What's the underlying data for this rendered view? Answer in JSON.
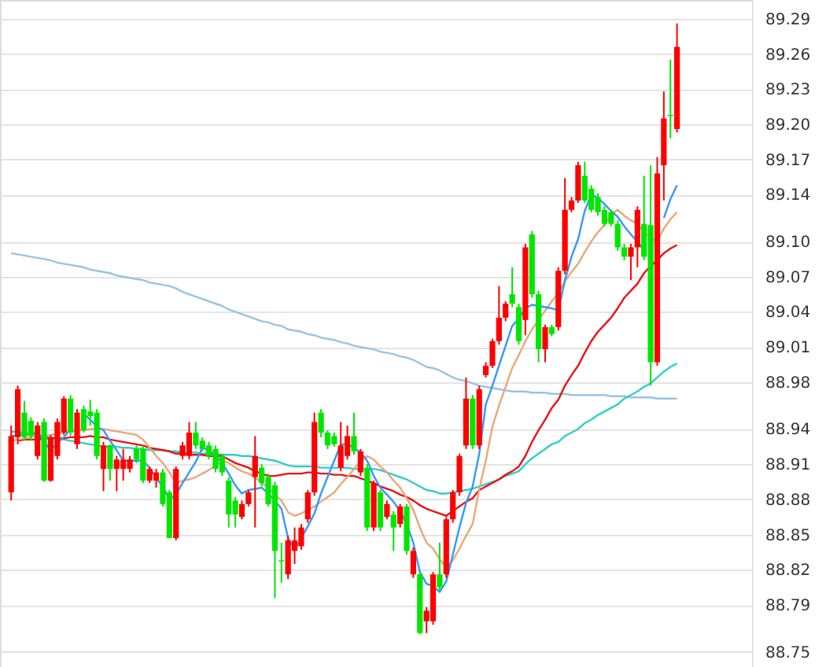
{
  "chart_data": {
    "type": "candlestick",
    "categories": [
      null,
      null,
      null,
      null,
      null,
      null,
      null,
      null,
      null,
      null,
      null,
      null,
      null,
      null,
      null,
      null,
      null,
      null,
      null,
      null,
      null,
      null,
      null,
      null,
      null,
      null,
      null,
      null,
      null,
      null,
      null,
      null,
      null,
      null,
      null,
      null,
      null,
      null,
      null,
      null,
      null,
      null,
      null,
      null,
      null,
      null,
      null,
      null,
      null,
      null,
      null,
      null,
      null,
      null,
      null,
      null,
      null,
      null,
      null,
      null,
      null,
      null,
      null,
      null,
      null,
      null,
      null,
      null,
      null,
      null,
      null,
      null,
      null,
      null,
      null,
      null,
      null,
      null,
      null,
      null,
      null,
      null,
      null,
      null,
      null,
      null,
      null,
      null,
      null,
      null,
      null,
      null,
      null,
      null,
      null,
      null,
      null,
      null,
      null,
      null,
      null,
      null
    ],
    "ohlc": [
      [
        88.886,
        88.943,
        88.879,
        88.934
      ],
      [
        88.933,
        88.977,
        88.927,
        88.974
      ],
      [
        88.954,
        88.964,
        88.93,
        88.933
      ],
      [
        88.947,
        88.95,
        88.93,
        88.934
      ],
      [
        88.917,
        88.946,
        88.914,
        88.943
      ],
      [
        88.946,
        88.949,
        88.895,
        88.896
      ],
      [
        88.896,
        88.935,
        88.895,
        88.933
      ],
      [
        88.917,
        88.949,
        88.914,
        88.946
      ],
      [
        88.937,
        88.968,
        88.935,
        88.966
      ],
      [
        88.966,
        88.969,
        88.934,
        88.937
      ],
      [
        88.927,
        88.957,
        88.923,
        88.954
      ],
      [
        88.957,
        88.96,
        88.937,
        88.939
      ],
      [
        88.955,
        88.965,
        88.943,
        88.951
      ],
      [
        88.954,
        88.957,
        88.914,
        88.917
      ],
      [
        88.906,
        88.929,
        88.887,
        88.926
      ],
      [
        88.926,
        88.927,
        88.896,
        88.906
      ],
      [
        88.906,
        88.917,
        88.887,
        88.914
      ],
      [
        88.906,
        88.923,
        88.896,
        88.914
      ],
      [
        88.906,
        88.917,
        88.903,
        88.914
      ],
      [
        88.923,
        88.926,
        88.911,
        88.914
      ],
      [
        88.923,
        88.926,
        88.894,
        88.896
      ],
      [
        88.896,
        88.908,
        88.894,
        88.906
      ],
      [
        88.896,
        88.906,
        88.89,
        88.903
      ],
      [
        88.903,
        88.906,
        88.874,
        88.876
      ],
      [
        88.886,
        88.888,
        88.847,
        88.847
      ],
      [
        88.847,
        88.908,
        88.845,
        88.906
      ],
      [
        88.917,
        88.929,
        88.914,
        88.926
      ],
      [
        88.917,
        88.946,
        88.914,
        88.937
      ],
      [
        88.937,
        88.946,
        88.923,
        88.926
      ],
      [
        88.93,
        88.933,
        88.921,
        88.923
      ],
      [
        88.926,
        88.929,
        88.914,
        88.917
      ],
      [
        88.923,
        88.926,
        88.903,
        88.906
      ],
      [
        88.917,
        88.919,
        88.9,
        88.903
      ],
      [
        88.896,
        88.899,
        88.856,
        88.867
      ],
      [
        88.879,
        88.882,
        88.856,
        88.867
      ],
      [
        88.865,
        88.879,
        88.863,
        88.876
      ],
      [
        88.876,
        88.888,
        88.874,
        88.886
      ],
      [
        88.899,
        88.934,
        88.856,
        88.917
      ],
      [
        88.907,
        88.91,
        88.891,
        88.894
      ],
      [
        88.899,
        88.902,
        88.874,
        88.876
      ],
      [
        88.892,
        88.895,
        88.796,
        88.836
      ],
      [
        88.828,
        88.843,
        88.809,
        88.827
      ],
      [
        88.816,
        88.849,
        88.812,
        88.845
      ],
      [
        88.836,
        88.856,
        88.825,
        88.845
      ],
      [
        88.84,
        88.859,
        88.837,
        88.856
      ],
      [
        88.863,
        88.888,
        88.86,
        88.886
      ],
      [
        88.886,
        88.954,
        88.883,
        88.946
      ],
      [
        88.954,
        88.957,
        88.933,
        88.937
      ],
      [
        88.937,
        88.939,
        88.923,
        88.926
      ],
      [
        88.934,
        88.937,
        88.925,
        88.927
      ],
      [
        88.907,
        88.946,
        88.904,
        88.926
      ],
      [
        88.917,
        88.943,
        88.914,
        88.934
      ],
      [
        88.934,
        88.954,
        88.918,
        88.921
      ],
      [
        88.903,
        88.923,
        88.9,
        88.921
      ],
      [
        88.907,
        88.91,
        88.853,
        88.856
      ],
      [
        88.856,
        88.896,
        88.853,
        88.894
      ],
      [
        88.886,
        88.888,
        88.853,
        88.856
      ],
      [
        88.865,
        88.879,
        88.863,
        88.876
      ],
      [
        88.867,
        88.87,
        88.836,
        88.856
      ],
      [
        88.859,
        88.876,
        88.856,
        88.874
      ],
      [
        88.874,
        88.876,
        88.833,
        88.836
      ],
      [
        88.816,
        88.839,
        88.813,
        88.836
      ],
      [
        88.816,
        88.818,
        88.765,
        88.766
      ],
      [
        88.776,
        88.788,
        88.766,
        88.785
      ],
      [
        88.776,
        88.818,
        88.773,
        88.816
      ],
      [
        88.816,
        88.843,
        88.802,
        88.805
      ],
      [
        88.816,
        88.865,
        88.813,
        88.863
      ],
      [
        88.863,
        88.888,
        88.86,
        88.886
      ],
      [
        88.886,
        88.919,
        88.883,
        88.917
      ],
      [
        88.926,
        88.984,
        88.923,
        88.966
      ],
      [
        88.966,
        88.969,
        88.923,
        88.926
      ],
      [
        88.926,
        88.977,
        88.923,
        88.974
      ],
      [
        88.986,
        88.997,
        88.984,
        88.994
      ],
      [
        88.994,
        89.017,
        88.992,
        89.015
      ],
      [
        89.015,
        89.062,
        89.012,
        89.035
      ],
      [
        89.035,
        89.049,
        89.032,
        89.047
      ],
      [
        89.055,
        89.078,
        89.044,
        89.047
      ],
      [
        89.044,
        89.047,
        89.012,
        89.015
      ],
      [
        89.033,
        89.098,
        89.02,
        89.095
      ],
      [
        89.106,
        89.109,
        89.052,
        89.055
      ],
      [
        89.055,
        89.058,
        88.997,
        89.008
      ],
      [
        89.008,
        89.029,
        88.997,
        89.027
      ],
      [
        89.027,
        89.029,
        89.019,
        89.021
      ],
      [
        89.027,
        89.078,
        89.024,
        89.075
      ],
      [
        89.075,
        89.154,
        89.072,
        89.127
      ],
      [
        89.127,
        89.138,
        89.125,
        89.135
      ],
      [
        89.135,
        89.168,
        89.133,
        89.165
      ],
      [
        89.156,
        89.168,
        89.133,
        89.135
      ],
      [
        89.145,
        89.148,
        89.125,
        89.127
      ],
      [
        89.138,
        89.141,
        89.122,
        89.125
      ],
      [
        89.127,
        89.13,
        89.113,
        89.115
      ],
      [
        89.125,
        89.127,
        89.113,
        89.115
      ],
      [
        89.115,
        89.118,
        89.092,
        89.095
      ],
      [
        89.095,
        89.098,
        89.084,
        89.087
      ],
      [
        89.087,
        89.098,
        89.067,
        89.095
      ],
      [
        89.095,
        89.13,
        89.078,
        89.127
      ],
      [
        89.115,
        89.156,
        89.084,
        89.087
      ],
      [
        89.114,
        89.165,
        88.977,
        88.997
      ],
      [
        88.997,
        89.172,
        88.994,
        89.158
      ],
      [
        89.165,
        89.228,
        89.135,
        89.205
      ],
      [
        89.208,
        89.255,
        89.188,
        89.207
      ],
      [
        89.196,
        89.286,
        89.193,
        89.266
      ]
    ],
    "colors": [
      "#ff0000",
      "#ff0000",
      "#00e600",
      "#00e600",
      "#ff0000",
      "#00e600",
      "#ff0000",
      "#ff0000",
      "#ff0000",
      "#00e600",
      "#ff0000",
      "#00e600",
      "#00e600",
      "#00e600",
      "#ff0000",
      "#00e600",
      "#ff0000",
      "#ff0000",
      "#ff0000",
      "#00e600",
      "#00e600",
      "#ff0000",
      "#ff0000",
      "#00e600",
      "#00e600",
      "#ff0000",
      "#ff0000",
      "#ff0000",
      "#00e600",
      "#00e600",
      "#00e600",
      "#00e600",
      "#00e600",
      "#00e600",
      "#00e600",
      "#ff0000",
      "#ff0000",
      "#ff0000",
      "#00e600",
      "#00e600",
      "#00e600",
      "#00e600",
      "#ff0000",
      "#ff0000",
      "#ff0000",
      "#ff0000",
      "#ff0000",
      "#00e600",
      "#00e600",
      "#00e600",
      "#ff0000",
      "#ff0000",
      "#00e600",
      "#ff0000",
      "#00e600",
      "#ff0000",
      "#00e600",
      "#ff0000",
      "#00e600",
      "#ff0000",
      "#00e600",
      "#ff0000",
      "#00e600",
      "#ff0000",
      "#ff0000",
      "#00e600",
      "#ff0000",
      "#ff0000",
      "#ff0000",
      "#ff0000",
      "#00e600",
      "#ff0000",
      "#ff0000",
      "#ff0000",
      "#ff0000",
      "#ff0000",
      "#00e600",
      "#00e600",
      "#ff0000",
      "#00e600",
      "#00e600",
      "#ff0000",
      "#00e600",
      "#ff0000",
      "#ff0000",
      "#ff0000",
      "#ff0000",
      "#00e600",
      "#00e600",
      "#00e600",
      "#00e600",
      "#00e600",
      "#00e600",
      "#00e600",
      "#ff0000",
      "#ff0000",
      "#00e600",
      "#00e600",
      "#ff0000",
      "#ff0000",
      "#00e600",
      "#ff0000"
    ],
    "series": [
      {
        "type": "line",
        "color": "#99c4e0",
        "values": [
          89.09,
          89.089,
          89.088,
          89.087,
          89.086,
          89.085,
          89.084,
          89.082,
          89.081,
          89.08,
          89.079,
          89.078,
          89.076,
          89.075,
          89.074,
          89.073,
          89.071,
          89.07,
          89.069,
          89.068,
          89.067,
          89.065,
          89.064,
          89.063,
          89.062,
          89.06,
          89.057,
          89.055,
          89.053,
          89.051,
          89.049,
          89.047,
          89.045,
          89.042,
          89.04,
          89.038,
          89.036,
          89.034,
          89.032,
          89.031,
          89.029,
          89.028,
          89.025,
          89.024,
          89.023,
          89.021,
          89.02,
          89.018,
          89.017,
          89.016,
          89.014,
          89.013,
          89.011,
          89.01,
          89.009,
          89.008,
          89.006,
          89.005,
          89.004,
          89.002,
          89.001,
          88.999,
          88.996,
          88.993,
          88.992,
          88.99,
          88.987,
          88.984,
          88.982,
          88.981,
          88.979,
          88.977,
          88.976,
          88.975,
          88.974,
          88.973,
          88.972,
          88.972,
          88.972,
          88.971,
          88.971,
          88.971,
          88.97,
          88.97,
          88.97,
          88.969,
          88.969,
          88.969,
          88.969,
          88.969,
          88.969,
          88.968,
          88.968,
          88.968,
          88.967,
          88.967,
          88.967,
          88.967,
          88.966,
          88.966,
          88.966,
          88.966
        ]
      },
      {
        "type": "line",
        "color": "#33cccc",
        "values": [
          88.938,
          88.937,
          88.937,
          88.936,
          88.935,
          88.934,
          88.933,
          88.932,
          88.931,
          88.93,
          88.929,
          88.928,
          88.927,
          88.926,
          88.925,
          88.925,
          88.925,
          88.924,
          88.924,
          88.923,
          88.923,
          88.922,
          88.922,
          88.922,
          88.921,
          88.921,
          88.92,
          88.92,
          88.92,
          88.919,
          88.919,
          88.919,
          88.918,
          88.918,
          88.918,
          88.917,
          88.917,
          88.916,
          88.915,
          88.914,
          88.913,
          88.911,
          88.909,
          88.908,
          88.908,
          88.908,
          88.908,
          88.907,
          88.907,
          88.907,
          88.907,
          88.907,
          88.906,
          88.906,
          88.906,
          88.906,
          88.905,
          88.903,
          88.901,
          88.899,
          88.897,
          88.894,
          88.891,
          88.888,
          88.887,
          88.885,
          88.885,
          88.886,
          88.887,
          88.888,
          88.889,
          88.891,
          88.893,
          88.895,
          88.897,
          88.9,
          88.902,
          88.904,
          88.91,
          88.915,
          88.919,
          88.923,
          88.927,
          88.929,
          88.934,
          88.937,
          88.94,
          88.945,
          88.948,
          88.952,
          88.955,
          88.958,
          88.961,
          88.966,
          88.969,
          88.972,
          88.976,
          88.979,
          88.984,
          88.989,
          88.993,
          88.996
        ]
      },
      {
        "type": "line",
        "color": "#ee1111",
        "values": [
          null,
          88.93,
          88.931,
          88.931,
          88.931,
          88.932,
          88.932,
          88.932,
          88.932,
          88.933,
          88.933,
          88.933,
          88.934,
          88.933,
          88.933,
          88.931,
          88.93,
          88.929,
          88.928,
          88.927,
          88.926,
          88.924,
          88.923,
          88.922,
          88.921,
          88.919,
          88.919,
          88.918,
          88.918,
          88.918,
          88.917,
          88.917,
          88.917,
          88.914,
          88.911,
          88.909,
          88.907,
          88.904,
          88.902,
          88.9,
          88.9,
          88.901,
          88.902,
          88.902,
          88.902,
          88.903,
          88.903,
          88.902,
          88.902,
          88.901,
          88.901,
          88.9,
          88.9,
          88.898,
          88.896,
          88.894,
          88.891,
          88.889,
          88.887,
          88.884,
          88.882,
          88.879,
          88.875,
          88.872,
          88.87,
          88.868,
          88.866,
          88.87,
          88.874,
          88.878,
          88.881,
          88.888,
          88.891,
          88.894,
          88.897,
          88.901,
          88.904,
          88.908,
          88.917,
          88.929,
          88.939,
          88.948,
          88.958,
          88.965,
          88.977,
          88.986,
          88.994,
          89.005,
          89.015,
          89.023,
          89.029,
          89.035,
          89.043,
          89.052,
          89.058,
          89.064,
          89.073,
          89.079,
          89.084,
          89.09,
          89.094,
          89.097
        ]
      },
      {
        "type": "line",
        "color": "#e8a878",
        "values": [
          88.93,
          88.931,
          88.932,
          88.933,
          88.934,
          88.934,
          88.935,
          88.936,
          88.937,
          88.938,
          88.939,
          88.939,
          88.94,
          88.94,
          88.94,
          88.939,
          88.938,
          88.937,
          88.936,
          88.935,
          88.931,
          88.924,
          88.917,
          88.911,
          88.903,
          88.894,
          88.896,
          88.897,
          88.899,
          88.902,
          88.905,
          88.909,
          88.913,
          88.911,
          88.907,
          88.904,
          88.902,
          88.899,
          88.894,
          88.89,
          88.884,
          88.879,
          88.869,
          88.866,
          88.868,
          88.871,
          88.874,
          88.878,
          88.882,
          88.886,
          88.893,
          88.899,
          88.906,
          88.912,
          88.917,
          88.914,
          88.908,
          88.903,
          88.896,
          88.89,
          88.881,
          88.871,
          88.856,
          88.843,
          88.838,
          88.829,
          88.822,
          88.828,
          88.838,
          88.849,
          88.859,
          88.889,
          88.913,
          88.942,
          88.96,
          88.976,
          88.992,
          89.003,
          89.015,
          89.025,
          89.033,
          89.041,
          89.049,
          89.056,
          89.066,
          89.074,
          89.081,
          89.091,
          89.1,
          89.108,
          89.114,
          89.123,
          89.127,
          89.122,
          89.118,
          89.115,
          89.108,
          89.103,
          89.1,
          89.111,
          89.119,
          89.125
        ]
      },
      {
        "type": "line",
        "color": "#3399ff",
        "values": [
          88.934,
          88.935,
          88.935,
          88.936,
          88.937,
          88.929,
          88.922,
          88.928,
          88.933,
          88.94,
          null,
          88.953,
          88.948,
          88.942,
          88.939,
          88.93,
          88.922,
          88.913,
          88.913,
          88.913,
          88.913,
          88.907,
          88.898,
          88.891,
          88.88,
          88.884,
          88.894,
          88.903,
          88.912,
          88.924,
          88.922,
          88.917,
          88.911,
          88.902,
          88.892,
          88.885,
          88.888,
          88.889,
          88.89,
          88.885,
          88.879,
          88.872,
          88.847,
          88.837,
          88.847,
          88.857,
          88.868,
          88.885,
          88.899,
          88.913,
          88.927,
          88.927,
          88.924,
          88.92,
          88.913,
          88.9,
          88.89,
          88.884,
          88.878,
          88.87,
          88.859,
          88.843,
          88.818,
          88.808,
          88.806,
          88.801,
          88.81,
          88.833,
          88.856,
          88.877,
          88.891,
          88.919,
          88.961,
          88.977,
          88.994,
          89.011,
          89.028,
          89.034,
          89.043,
          89.046,
          89.045,
          89.044,
          89.043,
          89.041,
          89.067,
          89.087,
          89.102,
          89.126,
          89.14,
          89.137,
          89.132,
          89.126,
          89.121,
          89.113,
          89.106,
          89.1,
          89.092,
          null,
          null,
          89.12,
          89.136,
          89.148
        ]
      }
    ],
    "ylim": [
      88.737,
      89.306
    ],
    "yticks": [
      88.75,
      88.79,
      88.82,
      88.85,
      88.88,
      88.91,
      88.94,
      88.98,
      89.01,
      89.04,
      89.07,
      {
        "value": 89.1,
        "label": "89.10"
      },
      89.14,
      89.17,
      {
        "value": 89.2,
        "label": "89.20"
      },
      89.23,
      89.26,
      89.29
    ],
    "grid": "y",
    "tick_labels": "y",
    "marker": "none",
    "line_style": "solid"
  }
}
